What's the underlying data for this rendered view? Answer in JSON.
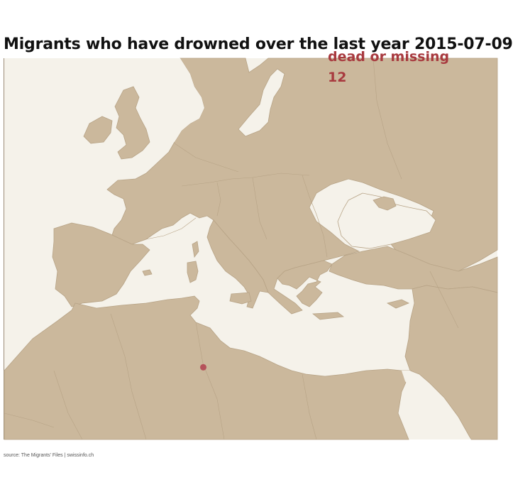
{
  "title": "Migrants who have drowned over the last year 2015-07-09",
  "counter": {
    "label": "dead or missing",
    "value": "12"
  },
  "source": "source: The Migrants' Files | swissinfo.ch",
  "colors": {
    "sea": "#f5f2ea",
    "land": "#cbb89c",
    "border": "#b7a386",
    "incident": "#b5525a",
    "counter_text": "#a83a3f"
  },
  "incidents": [
    {
      "name": "incident",
      "lat": 33.6,
      "lon": 11.6,
      "dead_or_missing": 12
    }
  ]
}
